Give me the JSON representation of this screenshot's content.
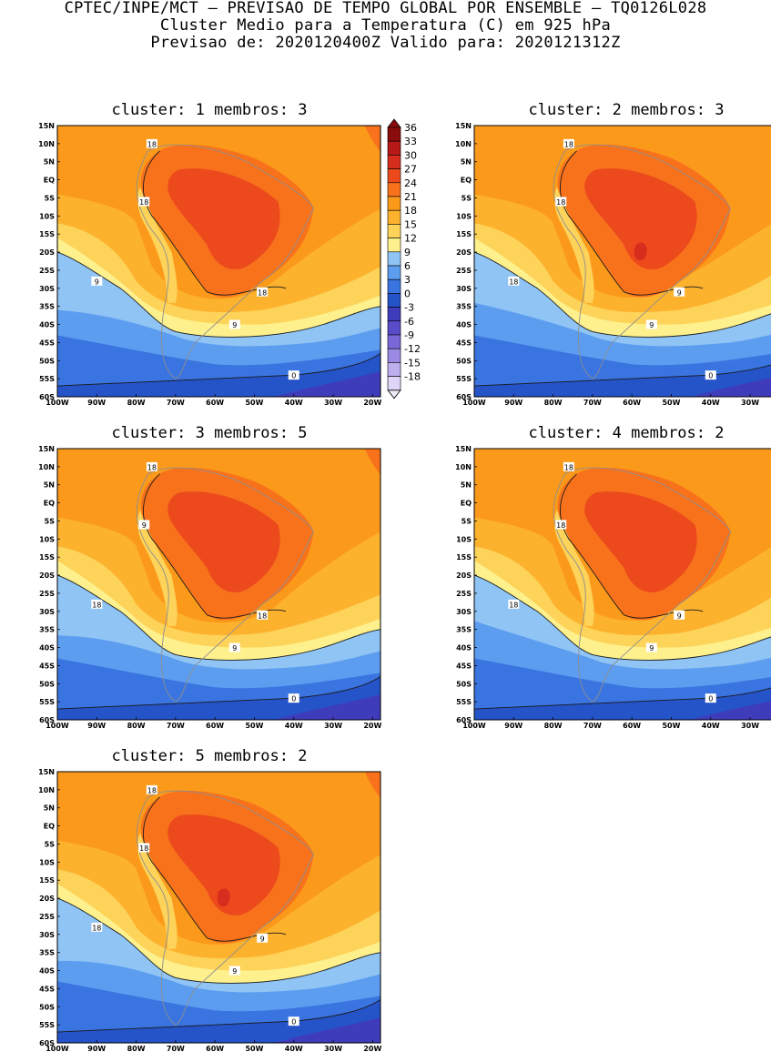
{
  "header": {
    "line1": "CPTEC/INPE/MCT – PREVISAO DE TEMPO GLOBAL POR ENSEMBLE – TQ0126L028",
    "line2": "Cluster Medio para a Temperatura (C) em 925 hPa",
    "line3": "Previsao de: 2020120400Z    Valido para: 2020121312Z"
  },
  "axes": {
    "lat_labels": [
      "15N",
      "10N",
      "5N",
      "EQ",
      "5S",
      "10S",
      "15S",
      "20S",
      "25S",
      "30S",
      "35S",
      "40S",
      "45S",
      "50S",
      "55S",
      "60S"
    ],
    "lon_labels": [
      "100W",
      "90W",
      "80W",
      "70W",
      "60W",
      "50W",
      "40W",
      "30W",
      "20W"
    ]
  },
  "colorbar": {
    "labels": [
      "36",
      "33",
      "30",
      "27",
      "24",
      "21",
      "18",
      "15",
      "12",
      "9",
      "6",
      "3",
      "0",
      "-3",
      "-6",
      "-9",
      "-12",
      "-15",
      "-18"
    ],
    "colors": [
      "#8b0c0c",
      "#b71818",
      "#d62d1f",
      "#ec4a1c",
      "#f8721c",
      "#fb9a1a",
      "#fdb22e",
      "#fdd35a",
      "#fef08c",
      "#8fc4f4",
      "#5c9df0",
      "#3a74e0",
      "#2553c8",
      "#3f3cbc",
      "#5a4cc8",
      "#7a68d8",
      "#9a8ae4",
      "#bdaeef",
      "#ddd4f8"
    ]
  },
  "panels": [
    {
      "cluster_label": "cluster:",
      "cluster": "1",
      "members_label": "membros:",
      "members": "3",
      "contours": [
        "18",
        "18",
        "9",
        "18",
        "9",
        "0"
      ]
    },
    {
      "cluster_label": "cluster:",
      "cluster": "2",
      "members_label": "membros:",
      "members": "3",
      "contours": [
        "18",
        "18",
        "18",
        "9",
        "9",
        "0"
      ]
    },
    {
      "cluster_label": "cluster:",
      "cluster": "3",
      "members_label": "membros:",
      "members": "5",
      "contours": [
        "18",
        "9",
        "18",
        "18",
        "9",
        "0"
      ]
    },
    {
      "cluster_label": "cluster:",
      "cluster": "4",
      "members_label": "membros:",
      "members": "2",
      "contours": [
        "18",
        "18",
        "18",
        "9",
        "9",
        "0"
      ]
    },
    {
      "cluster_label": "cluster:",
      "cluster": "5",
      "members_label": "membros:",
      "members": "2",
      "contours": [
        "18",
        "18",
        "18",
        "9",
        "9",
        "0"
      ]
    }
  ]
}
